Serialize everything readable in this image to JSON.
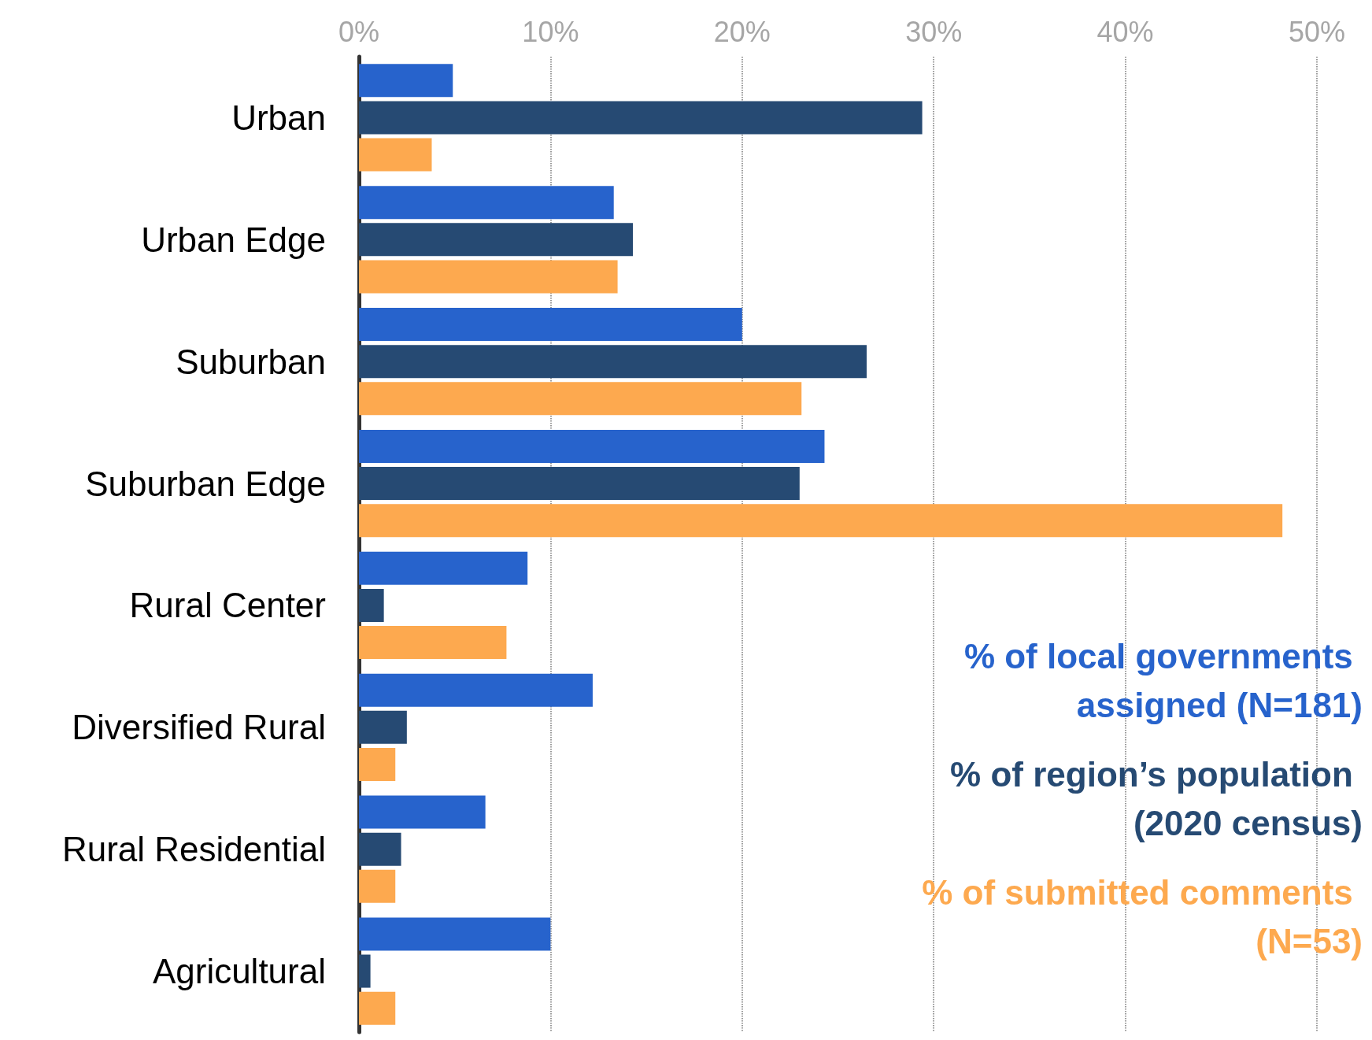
{
  "chart_data": {
    "type": "bar",
    "orientation": "horizontal",
    "categories": [
      "Urban",
      "Urban Edge",
      "Suburban",
      "Suburban Edge",
      "Rural Center",
      "Diversified Rural",
      "Rural Residential",
      "Agricultural"
    ],
    "series": [
      {
        "name": "% of local governments assigned (N=181)",
        "color": "#2763cc",
        "values": [
          4.9,
          13.3,
          20.0,
          24.3,
          8.8,
          12.2,
          6.6,
          10.0
        ]
      },
      {
        "name": "% of region’s population (2020 census)",
        "color": "#264a73",
        "values": [
          29.4,
          14.3,
          26.5,
          23.0,
          1.3,
          2.5,
          2.2,
          0.6
        ]
      },
      {
        "name": "% of submitted comments (N=53)",
        "color": "#fda94f",
        "values": [
          3.8,
          13.5,
          23.1,
          48.2,
          7.7,
          1.9,
          1.9,
          1.9
        ]
      }
    ],
    "xlim": [
      0,
      50
    ],
    "xticks": [
      {
        "value": 0,
        "label": "0%"
      },
      {
        "value": 10,
        "label": "10%"
      },
      {
        "value": 20,
        "label": "20%"
      },
      {
        "value": 30,
        "label": "30%"
      },
      {
        "value": 40,
        "label": "40%"
      },
      {
        "value": 50,
        "label": "50%"
      }
    ],
    "grid": "x",
    "legend": "bottom right"
  }
}
